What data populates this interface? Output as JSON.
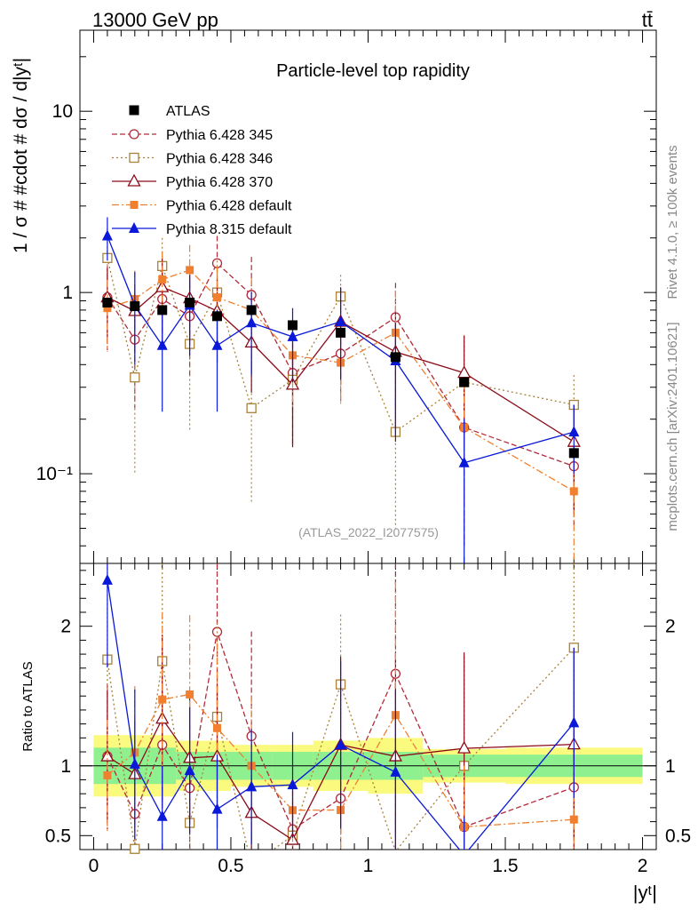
{
  "header": {
    "energy_label": "13000 GeV pp",
    "process_label": "tt̄",
    "side_label_top": "Rivet 4.1.0, ≥ 100k events",
    "side_label_bottom": "mcplots.cern.ch [arXiv:2401.10621]"
  },
  "chart_data": {
    "type": "scatter",
    "title": "Particle-level top rapidity",
    "watermark": "(ATLAS_2022_I2077575)",
    "xlabel": "|yᵗ|",
    "ylabel": "1 / σ # #cdot # dσ / d|yᵗ|",
    "ratio_ylabel": "Ratio to ATLAS",
    "xlim": [
      -0.05,
      2.05
    ],
    "ylim": [
      0.032,
      28
    ],
    "ylog": true,
    "ratio_ylim": [
      0.4,
      2.45
    ],
    "x_ticks": [
      0,
      0.5,
      1,
      1.5,
      2
    ],
    "x_tick_labels": [
      "0",
      "0.5",
      "1",
      "1.5",
      "2"
    ],
    "y_tick_labels": [
      {
        "value": 0.1,
        "label": "10⁻¹"
      },
      {
        "value": 1,
        "label": "1"
      },
      {
        "value": 10,
        "label": "10"
      }
    ],
    "ratio_tick_labels": [
      {
        "value": 0.5,
        "label": "0.5"
      },
      {
        "value": 1,
        "label": "1"
      },
      {
        "value": 2,
        "label": "2"
      }
    ],
    "bins": [
      [
        0,
        0.1
      ],
      [
        0.1,
        0.2
      ],
      [
        0.2,
        0.3
      ],
      [
        0.3,
        0.4
      ],
      [
        0.4,
        0.5
      ],
      [
        0.5,
        0.65
      ],
      [
        0.65,
        0.8
      ],
      [
        0.8,
        1.0
      ],
      [
        1.0,
        1.2
      ],
      [
        1.2,
        1.5
      ],
      [
        1.5,
        2.0
      ]
    ],
    "x": [
      0.05,
      0.15,
      0.25,
      0.35,
      0.45,
      0.575,
      0.725,
      0.9,
      1.1,
      1.35,
      1.75
    ],
    "data": {
      "name": "ATLAS",
      "values": [
        0.88,
        0.84,
        0.8,
        0.88,
        0.74,
        0.8,
        0.66,
        0.6,
        0.44,
        0.32,
        0.13
      ],
      "band_inner": [
        0.13,
        0.13,
        0.13,
        0.1,
        0.1,
        0.1,
        0.1,
        0.1,
        0.1,
        0.08,
        0.08
      ],
      "band_outer": [
        0.22,
        0.22,
        0.22,
        0.18,
        0.18,
        0.15,
        0.15,
        0.18,
        0.2,
        0.12,
        0.13
      ]
    },
    "series": [
      {
        "name": "Pythia 6.428 345",
        "color": "#b22a3a",
        "marker": "open-circle",
        "dash": "6,3",
        "values": [
          0.94,
          0.55,
          0.92,
          0.74,
          1.45,
          0.97,
          0.36,
          0.46,
          0.73,
          0.18,
          0.11
        ],
        "err_low": [
          0.46,
          0.32,
          0.4,
          0.4,
          0.6,
          0.6,
          0.22,
          0.21,
          0.5,
          0.14,
          0.06
        ],
        "err_high": [
          0.46,
          0.45,
          0.4,
          0.4,
          0.6,
          0.6,
          0.22,
          0.21,
          0.4,
          0.14,
          0.06
        ]
      },
      {
        "name": "Pythia 6.428 346",
        "color": "#a8813a",
        "marker": "open-square",
        "dash": "2,3",
        "values": [
          1.55,
          0.34,
          1.4,
          0.52,
          1.0,
          0.23,
          0.33,
          0.95,
          0.17,
          0.32,
          0.24
        ],
        "err_low": [
          0.7,
          0.24,
          0.6,
          0.35,
          0.5,
          0.16,
          0.18,
          0.7,
          0.12,
          0.25,
          0.11
        ],
        "err_high": [
          0.7,
          0.5,
          0.6,
          0.35,
          0.5,
          0.16,
          0.18,
          0.3,
          0.12,
          0.25,
          0.11
        ]
      },
      {
        "name": "Pythia 6.428 370",
        "color": "#8b0a18",
        "marker": "open-triangle",
        "dash": "",
        "values": [
          0.94,
          0.79,
          1.07,
          0.93,
          0.79,
          0.53,
          0.31,
          0.69,
          0.47,
          0.36,
          0.15
        ],
        "err_low": [
          0.42,
          0.32,
          0.48,
          0.42,
          0.38,
          0.25,
          0.17,
          0.38,
          0.32,
          0.22,
          0.09
        ],
        "err_high": [
          0.42,
          0.32,
          0.48,
          0.42,
          0.38,
          0.25,
          0.17,
          0.38,
          0.32,
          0.22,
          0.09
        ]
      },
      {
        "name": "Pythia 6.428 default",
        "color": "#f08030",
        "marker": "filled-square",
        "dash": "8,3,2,3",
        "values": [
          0.82,
          0.92,
          1.18,
          1.33,
          0.94,
          0.8,
          0.45,
          0.41,
          0.6,
          0.18,
          0.08
        ],
        "err_low": [
          0.35,
          0.4,
          0.5,
          0.5,
          0.45,
          0.4,
          0.22,
          0.17,
          0.42,
          0.14,
          0.05
        ],
        "err_high": [
          0.35,
          0.4,
          0.5,
          0.5,
          0.45,
          0.4,
          0.22,
          0.17,
          0.42,
          0.14,
          0.05
        ]
      },
      {
        "name": "Pythia 8.315 default",
        "color": "#0a18d8",
        "marker": "filled-triangle",
        "dash": "",
        "values": [
          2.05,
          0.85,
          0.51,
          0.85,
          0.51,
          0.68,
          0.57,
          0.69,
          0.42,
          0.115,
          0.17
        ],
        "err_low": [
          0.55,
          0.45,
          0.29,
          0.4,
          0.29,
          0.33,
          0.25,
          0.36,
          0.26,
          0.085,
          0.07
        ],
        "err_high": [
          0.55,
          0.45,
          0.29,
          0.4,
          0.29,
          0.33,
          0.25,
          0.36,
          0.26,
          0.085,
          0.07
        ]
      }
    ]
  }
}
